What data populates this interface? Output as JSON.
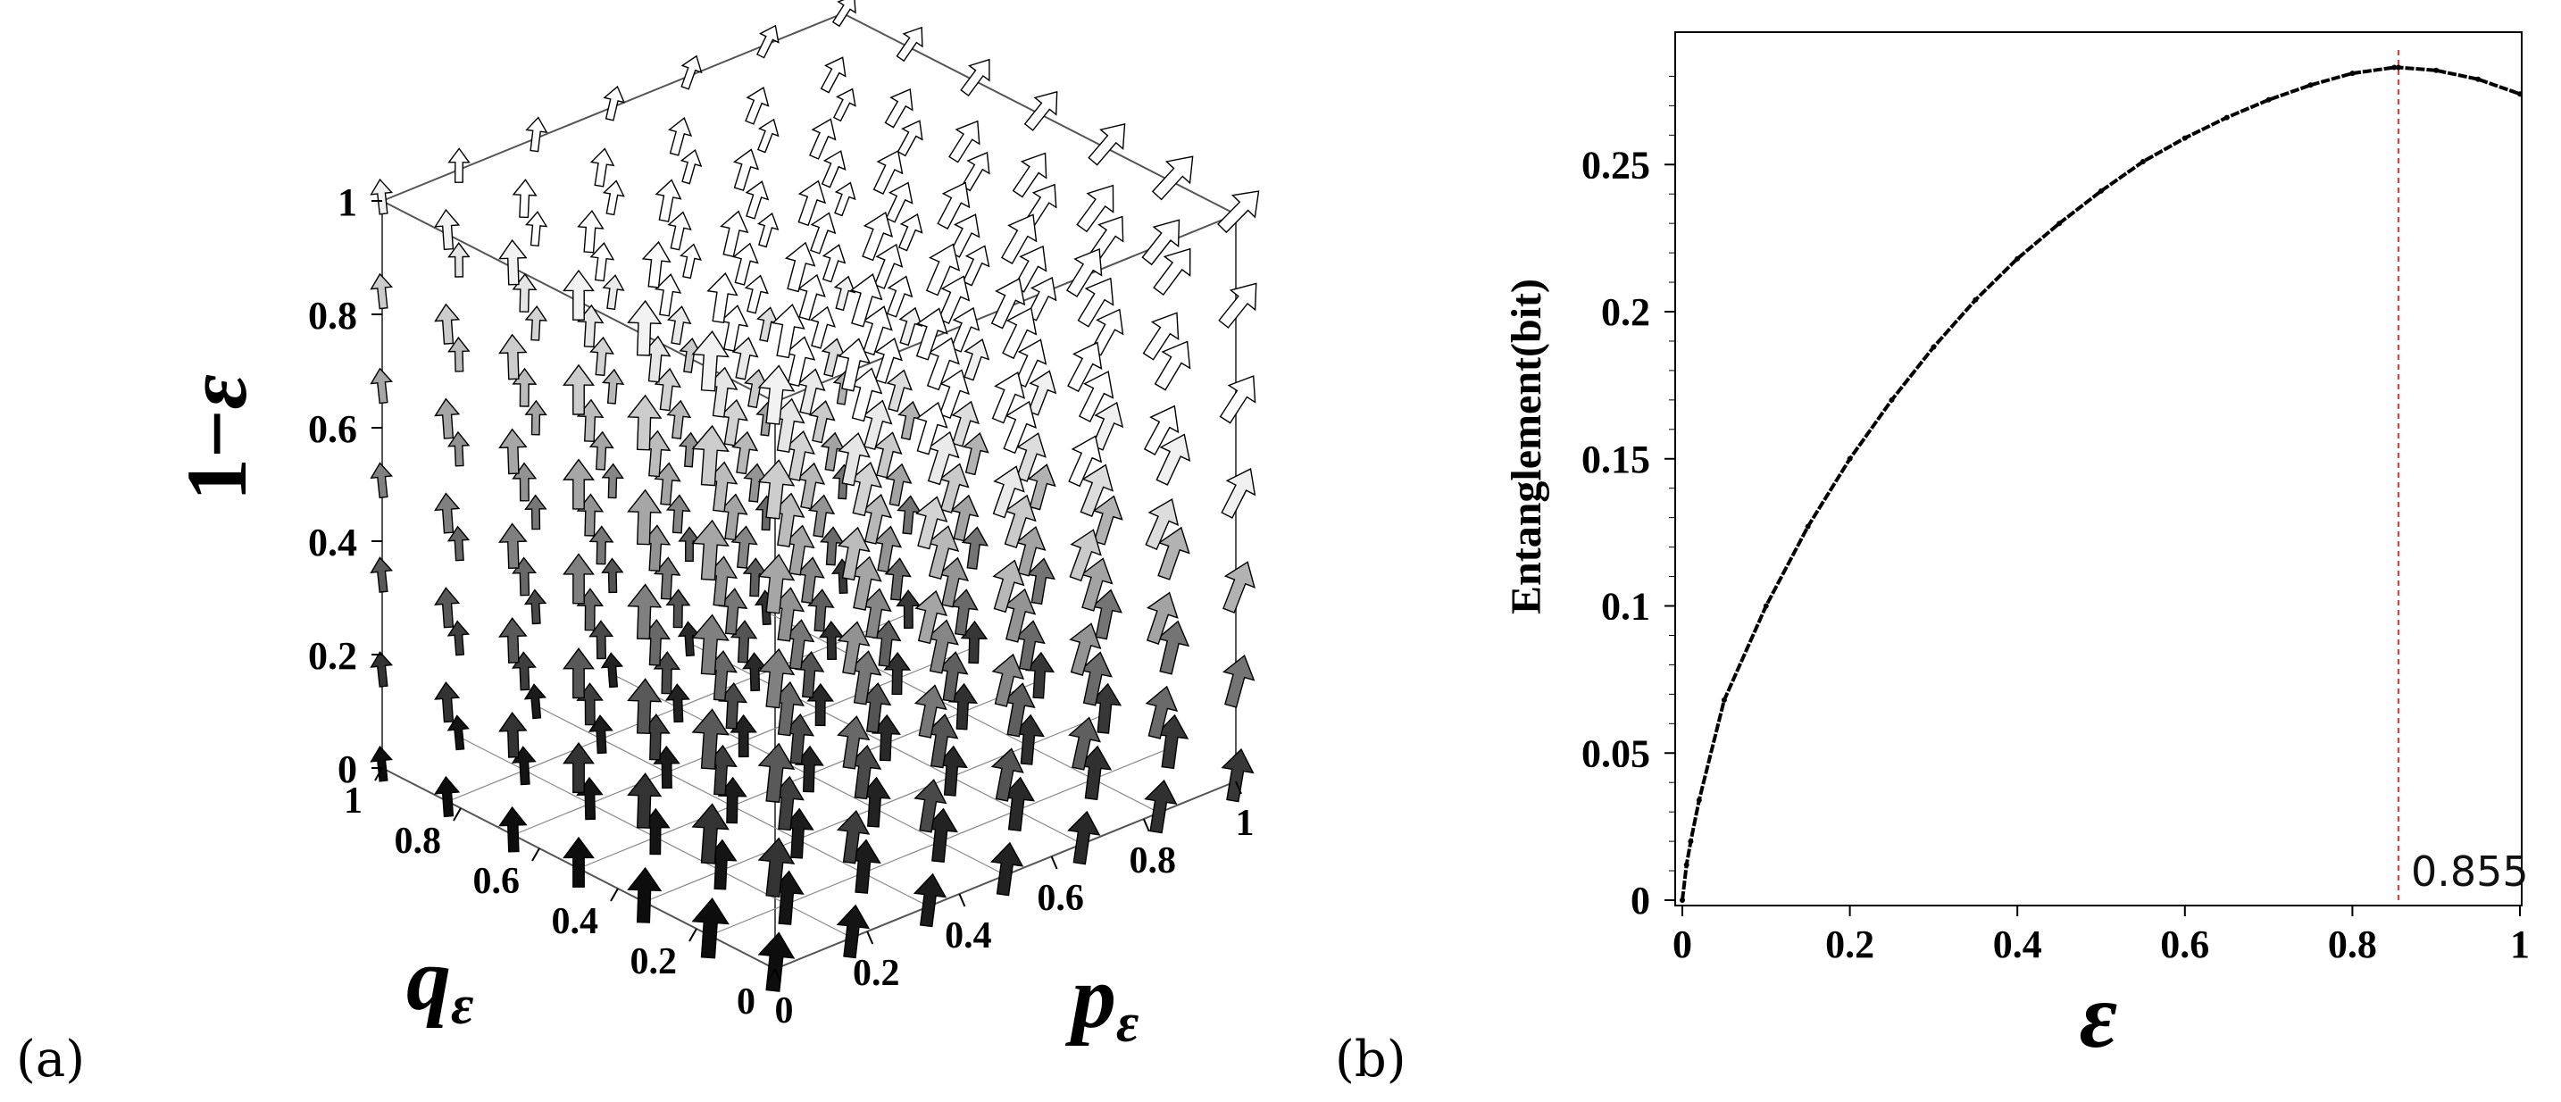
{
  "chart_data": [
    {
      "panel": "(a)",
      "type": "vector_field_3d",
      "zlabel_main": "1−",
      "zlabel_sym": "ε",
      "xlabel_main": "p",
      "xlabel_sub": "ε",
      "ylabel_main": "q",
      "ylabel_sub": "ε",
      "z_ticks": [
        "0",
        "0.2",
        "0.4",
        "0.6",
        "0.8",
        "1"
      ],
      "x_ticks": [
        "0",
        "0.2",
        "0.4",
        "0.6",
        "0.8",
        "1"
      ],
      "y_ticks": [
        "0",
        "0.2",
        "0.4",
        "0.6",
        "0.8",
        "1"
      ],
      "x_range": [
        0,
        1
      ],
      "y_range": [
        0,
        1
      ],
      "z_range": [
        0,
        1
      ],
      "grid_steps": 7,
      "shading": "dark at low (1-ε) and low pε, light near top and high pε",
      "arrow_color_dark": "#000000",
      "arrow_color_light": "#ffffff"
    },
    {
      "panel": "(b)",
      "type": "scatter",
      "title": "",
      "xlabel": "ε",
      "ylabel": "Entanglement(bit)",
      "xlim": [
        0,
        1
      ],
      "ylim": [
        0,
        0.295
      ],
      "x_ticks": [
        "0",
        "0.2",
        "0.4",
        "0.6",
        "0.8",
        "1"
      ],
      "y_ticks": [
        "0",
        "0.05",
        "0.1",
        "0.15",
        "0.2",
        "0.25"
      ],
      "x_tick_values": [
        0,
        0.2,
        0.4,
        0.6,
        0.8,
        1
      ],
      "y_tick_values": [
        0,
        0.05,
        0.1,
        0.15,
        0.2,
        0.25
      ],
      "series": [
        {
          "name": "Entanglement",
          "x": [
            0,
            0.005,
            0.01,
            0.02,
            0.05,
            0.1,
            0.15,
            0.2,
            0.25,
            0.3,
            0.35,
            0.4,
            0.45,
            0.5,
            0.55,
            0.6,
            0.65,
            0.7,
            0.75,
            0.8,
            0.85,
            0.855,
            0.9,
            0.95,
            1
          ],
          "y": [
            0,
            0.012,
            0.02,
            0.034,
            0.068,
            0.1,
            0.127,
            0.15,
            0.17,
            0.188,
            0.204,
            0.218,
            0.23,
            0.241,
            0.251,
            0.259,
            0.266,
            0.272,
            0.277,
            0.281,
            0.283,
            0.283,
            0.282,
            0.279,
            0.274
          ]
        }
      ],
      "annotation": {
        "x": 0.855,
        "label": "0.855",
        "color": "#ff3333"
      }
    }
  ]
}
